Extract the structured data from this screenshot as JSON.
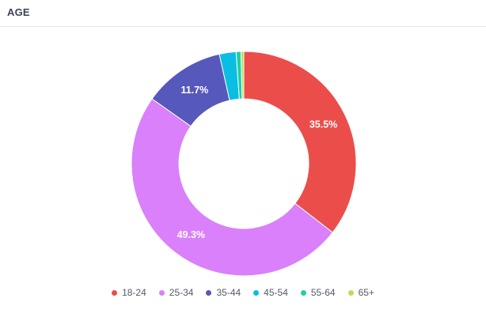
{
  "card": {
    "title": "AGE"
  },
  "chart_data": {
    "type": "pie",
    "variant": "donut",
    "title": "",
    "legend_position": "bottom",
    "categories": [
      "18-24",
      "25-34",
      "35-44",
      "45-54",
      "55-64",
      "65+"
    ],
    "values": [
      35.5,
      49.3,
      11.7,
      2.4,
      0.7,
      0.4
    ],
    "colors": [
      "#eb4d4b",
      "#d980fa",
      "#5758bb",
      "#0abde3",
      "#1dd1a1",
      "#badc58"
    ],
    "data_labels": [
      "35.5%",
      "49.3%",
      "11.7%",
      "",
      "",
      ""
    ],
    "start_angle_deg": 0,
    "direction": "clockwise"
  }
}
